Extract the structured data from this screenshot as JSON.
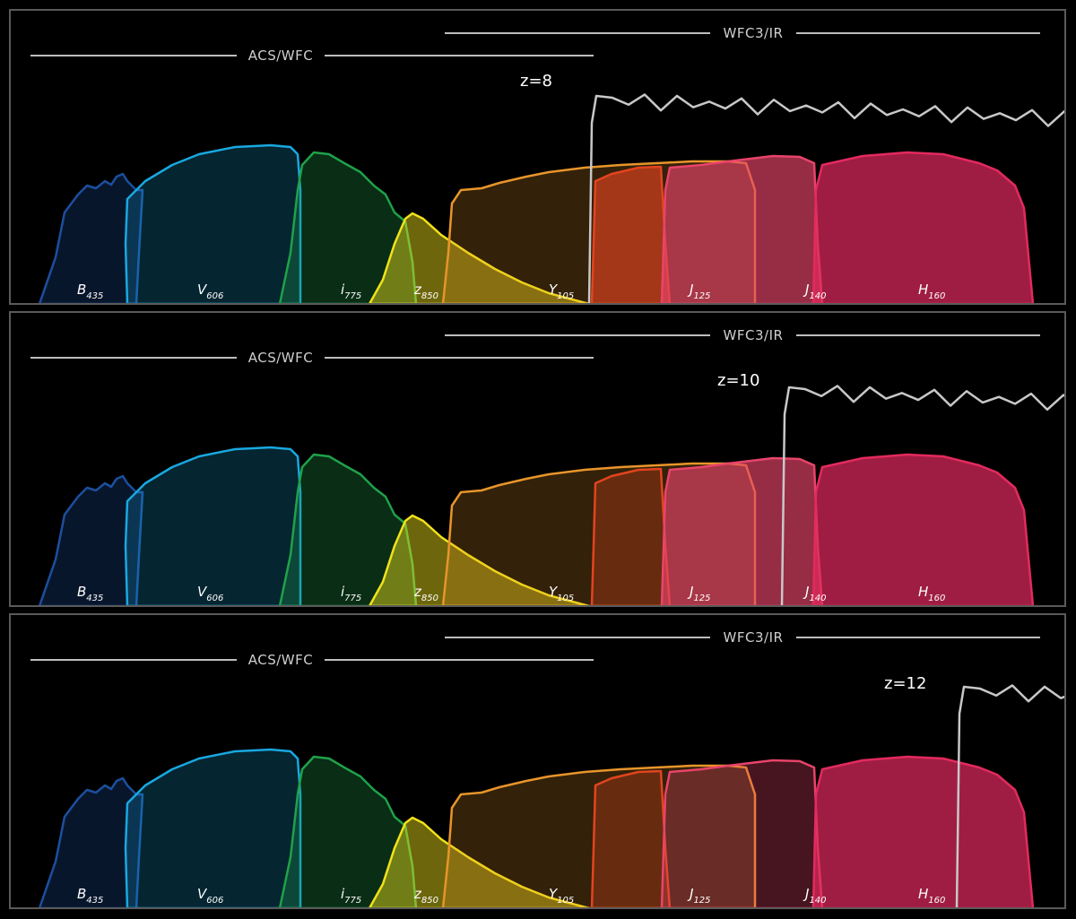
{
  "panels": [
    {
      "redshift_label": "z=8",
      "break_filter": "Y105",
      "filters": [
        {
          "band": "B",
          "sub": "435",
          "highlight": false
        },
        {
          "band": "V",
          "sub": "606",
          "highlight": false
        },
        {
          "band": "i",
          "sub": "775",
          "highlight": false
        },
        {
          "band": "z",
          "sub": "850",
          "highlight": false
        },
        {
          "band": "Y",
          "sub": "105",
          "highlight": false
        },
        {
          "band": "J",
          "sub": "125",
          "highlight": true
        },
        {
          "band": "J",
          "sub": "140",
          "highlight": true
        },
        {
          "band": "H",
          "sub": "160",
          "highlight": true
        }
      ]
    },
    {
      "redshift_label": "z=10",
      "break_filter": "J140",
      "filters": [
        {
          "band": "B",
          "sub": "435",
          "highlight": false
        },
        {
          "band": "V",
          "sub": "606",
          "highlight": false
        },
        {
          "band": "i",
          "sub": "775",
          "highlight": false
        },
        {
          "band": "z",
          "sub": "850",
          "highlight": false
        },
        {
          "band": "Y",
          "sub": "105",
          "highlight": false
        },
        {
          "band": "J",
          "sub": "125",
          "highlight": false
        },
        {
          "band": "J",
          "sub": "140",
          "highlight": true
        },
        {
          "band": "H",
          "sub": "160",
          "highlight": true
        }
      ]
    },
    {
      "redshift_label": "z=12",
      "break_filter": "H160",
      "filters": [
        {
          "band": "B",
          "sub": "435",
          "highlight": false
        },
        {
          "band": "V",
          "sub": "606",
          "highlight": false
        },
        {
          "band": "i",
          "sub": "775",
          "highlight": false
        },
        {
          "band": "z",
          "sub": "850",
          "highlight": false
        },
        {
          "band": "Y",
          "sub": "105",
          "highlight": false
        },
        {
          "band": "J",
          "sub": "125",
          "highlight": false
        },
        {
          "band": "J",
          "sub": "140",
          "highlight": false
        },
        {
          "band": "H",
          "sub": "160",
          "highlight": true
        }
      ]
    }
  ],
  "instruments": {
    "acs": "ACS/WFC",
    "wfc3": "WFC3/IR"
  },
  "colors": {
    "B435": "#1c4f9e",
    "V606": "#19a8e0",
    "i775": "#1fa14a",
    "z850": "#f1e21a",
    "Y105": "#e8952a",
    "J125": "#e2441f",
    "J140": "#e8446a",
    "H160": "#e32a5e",
    "spectrum": "#c8c8c8",
    "frame": "#5a5a5a",
    "background": "#000000"
  }
}
